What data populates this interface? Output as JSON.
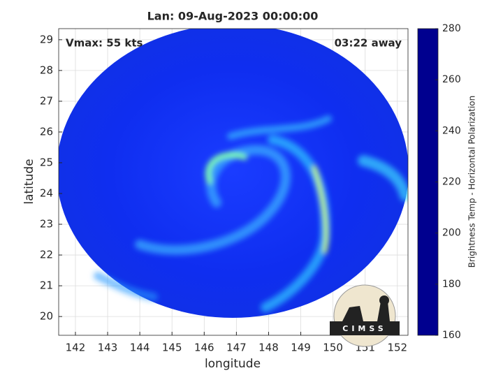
{
  "chart_data": {
    "type": "heatmap",
    "title": "Lan: 09-Aug-2023 00:00:00",
    "annotations": [
      "Vmax: 55 kts",
      "03:22 away"
    ],
    "x_label": "longitude",
    "y_label": "latitude",
    "xlim": [
      141.48,
      152.33
    ],
    "xticks": [
      142,
      143,
      144,
      145,
      146,
      147,
      148,
      149,
      150,
      151,
      152
    ],
    "ylim": [
      19.39,
      29.36
    ],
    "yticks": [
      20,
      21,
      22,
      23,
      24,
      25,
      26,
      27,
      28,
      29
    ],
    "grid": true,
    "colorbar": {
      "label": "Brightness Temp - Horizontal Polarization",
      "lim": [
        160,
        280
      ],
      "ticks": [
        160,
        180,
        200,
        220,
        240,
        260,
        280
      ],
      "colormap": [
        "#00008f",
        "#0000ff",
        "#007fff",
        "#00ffff",
        "#7fff7f",
        "#ffff00",
        "#ff7f00",
        "#ff0000",
        "#7f0000"
      ]
    },
    "logo": "CIMSS"
  }
}
